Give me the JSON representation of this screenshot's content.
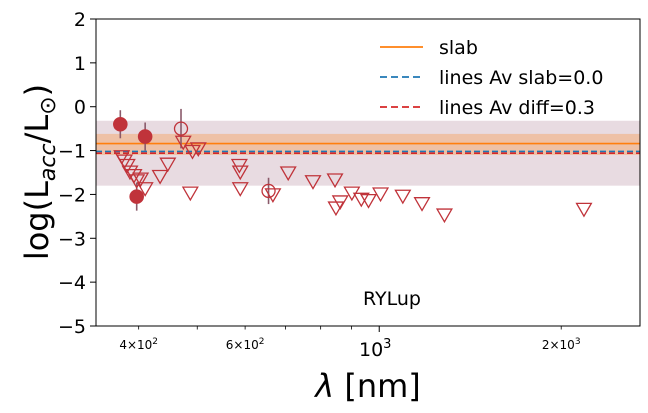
{
  "chart_data": {
    "type": "scatter",
    "title": "",
    "annotation": "RYLup",
    "xlabel": "λ [nm]",
    "ylabel": "log(L_acc/L_⊙)",
    "xscale": "log",
    "xlim": [
      340,
      2700
    ],
    "ylim": [
      -5,
      2
    ],
    "y_ticks": [
      2,
      1,
      0,
      -1,
      -2,
      -3,
      -4,
      -5
    ],
    "y_tick_labels": [
      "2",
      "1",
      "0",
      "−1",
      "−2",
      "−3",
      "−4",
      "−5"
    ],
    "x_major_tick": {
      "value": 1000,
      "base": "10",
      "exp": "3"
    },
    "x_minor_labeled_ticks": [
      {
        "value": 400,
        "mant": "4",
        "base": "10",
        "exp": "2"
      },
      {
        "value": 600,
        "mant": "6",
        "base": "10",
        "exp": "2"
      },
      {
        "value": 2000,
        "mant": "2",
        "base": "10",
        "exp": "3"
      }
    ],
    "x_minor_unlabeled_ticks": [
      500,
      700,
      800,
      900
    ],
    "legend": {
      "placement": "top-right",
      "entries": [
        {
          "label": "slab",
          "style": "solid",
          "color": "#ff7f0e"
        },
        {
          "label": "lines Av slab=0.0",
          "style": "dashed",
          "color": "#1f77b4"
        },
        {
          "label": "lines Av diff=0.3",
          "style": "dashed",
          "color": "#d62728"
        }
      ]
    },
    "bands": [
      {
        "name": "lines-scatter-band",
        "y_low": -1.8,
        "y_high": -0.32,
        "color": "#8b4a6b"
      },
      {
        "name": "slab-uncertainty-band",
        "y_low": -1.1,
        "y_high": -0.62,
        "color": "#ff7f0e"
      }
    ],
    "lines": [
      {
        "name": "slab-line",
        "y": -0.84,
        "color": "#ff7f0e",
        "style": "solid"
      },
      {
        "name": "lines-av-slab-line",
        "y": -1.02,
        "color": "#1f77b4",
        "style": "dashed"
      },
      {
        "name": "lines-av-diff-line",
        "y": -1.06,
        "color": "#d62728",
        "style": "dashed"
      }
    ],
    "series": [
      {
        "name": "detections-filled",
        "marker": "filled-circle",
        "color": "#c0333a",
        "points": [
          {
            "x": 373,
            "y": -0.4,
            "err": 0.32
          },
          {
            "x": 397,
            "y": -2.05,
            "err": 0.32
          },
          {
            "x": 410,
            "y": -0.68,
            "err": 0.32
          }
        ]
      },
      {
        "name": "detections-open",
        "marker": "open-circle",
        "color": "#c0333a",
        "points": [
          {
            "x": 470,
            "y": -0.5,
            "err": 0.45
          },
          {
            "x": 656,
            "y": -1.92,
            "err": 0.3
          }
        ]
      },
      {
        "name": "upper-limits",
        "marker": "open-triangle-down",
        "color": "#c0333a",
        "points": [
          {
            "x": 375,
            "y": -1.15
          },
          {
            "x": 379,
            "y": -1.25
          },
          {
            "x": 383,
            "y": -1.35
          },
          {
            "x": 387,
            "y": -1.5
          },
          {
            "x": 393,
            "y": -1.58
          },
          {
            "x": 397,
            "y": -1.7
          },
          {
            "x": 403,
            "y": -1.66
          },
          {
            "x": 410,
            "y": -1.88
          },
          {
            "x": 434,
            "y": -1.6
          },
          {
            "x": 447,
            "y": -1.32
          },
          {
            "x": 474,
            "y": -0.82
          },
          {
            "x": 487,
            "y": -1.98
          },
          {
            "x": 491,
            "y": -1.03
          },
          {
            "x": 502,
            "y": -0.97
          },
          {
            "x": 587,
            "y": -1.35
          },
          {
            "x": 589,
            "y": -1.5
          },
          {
            "x": 589,
            "y": -1.88
          },
          {
            "x": 667,
            "y": -2.02
          },
          {
            "x": 707,
            "y": -1.52
          },
          {
            "x": 777,
            "y": -1.72
          },
          {
            "x": 845,
            "y": -1.68
          },
          {
            "x": 848,
            "y": -2.32
          },
          {
            "x": 862,
            "y": -2.18
          },
          {
            "x": 901,
            "y": -1.98
          },
          {
            "x": 934,
            "y": -2.12
          },
          {
            "x": 960,
            "y": -2.15
          },
          {
            "x": 1005,
            "y": -2.0
          },
          {
            "x": 1094,
            "y": -2.05
          },
          {
            "x": 1177,
            "y": -2.22
          },
          {
            "x": 1282,
            "y": -2.48
          },
          {
            "x": 2181,
            "y": -2.35
          }
        ]
      }
    ]
  }
}
